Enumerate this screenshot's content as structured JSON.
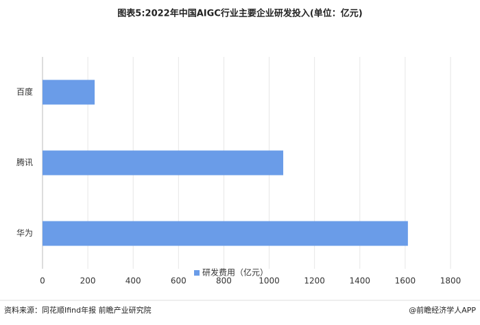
{
  "chart_data": {
    "type": "hbar",
    "title": "图表5:2022年中国AIGC行业主要企业研发投入(单位：亿元)",
    "categories": [
      "百度",
      "腾讯",
      "华为"
    ],
    "series": [
      {
        "name": "研发费用（亿元）",
        "color": "#6a9ce8",
        "values": [
          230,
          1062,
          1612
        ]
      }
    ],
    "xlim": [
      0,
      1800
    ],
    "xticks": [
      0,
      200,
      400,
      600,
      800,
      1000,
      1200,
      1400,
      1600,
      1800
    ],
    "grid": true,
    "legend": "bottom",
    "source": "资料来源：同花顺Ifind年报 前瞻产业研究院",
    "credit": "@前瞻经济学人APP"
  }
}
